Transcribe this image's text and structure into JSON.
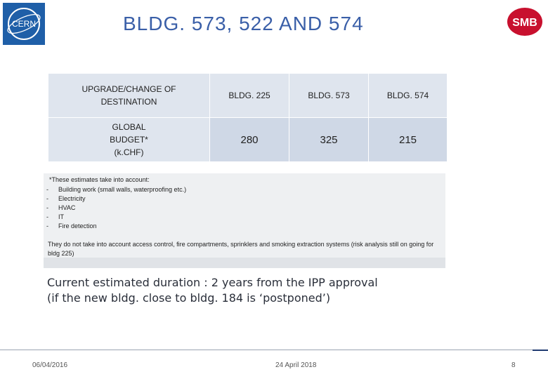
{
  "header": {
    "title": "BLDG. 573, 522 AND 574",
    "cern_logo_text": "CERN",
    "smb_logo_text": "SMB"
  },
  "table": {
    "row_labels": [
      "UPGRADE/CHANGE OF DESTINATION",
      "GLOBAL BUDGET* (k.CHF)"
    ],
    "columns": [
      "BLDG. 225",
      "BLDG. 573",
      "BLDG. 574"
    ],
    "budget_values": [
      "280",
      "325",
      "215"
    ]
  },
  "notes": {
    "intro": "*These estimates take into account:",
    "items": [
      "Building work (small walls, waterproofing etc.)",
      "Electricity",
      "HVAC",
      "IT",
      "Fire detection"
    ],
    "dash": "-",
    "exclusion": "They do not take into account access control, fire compartments, sprinklers and smoking extraction systems (risk analysis still on going for bldg 225)"
  },
  "duration": {
    "line1": "Current estimated duration : 2 years from the IPP approval",
    "line2": "(if the new bldg. close to bldg. 184 is ‘postponed’)"
  },
  "footer": {
    "date_left": "06/04/2016",
    "date_center": "24 April 2018",
    "page_number": "8"
  },
  "colors": {
    "title": "#3a5fa8",
    "label_fill": "#dfe5ee",
    "value_fill": "#cfd8e6",
    "notes_fill": "#eef0f2",
    "smb_red": "#c8102e"
  }
}
